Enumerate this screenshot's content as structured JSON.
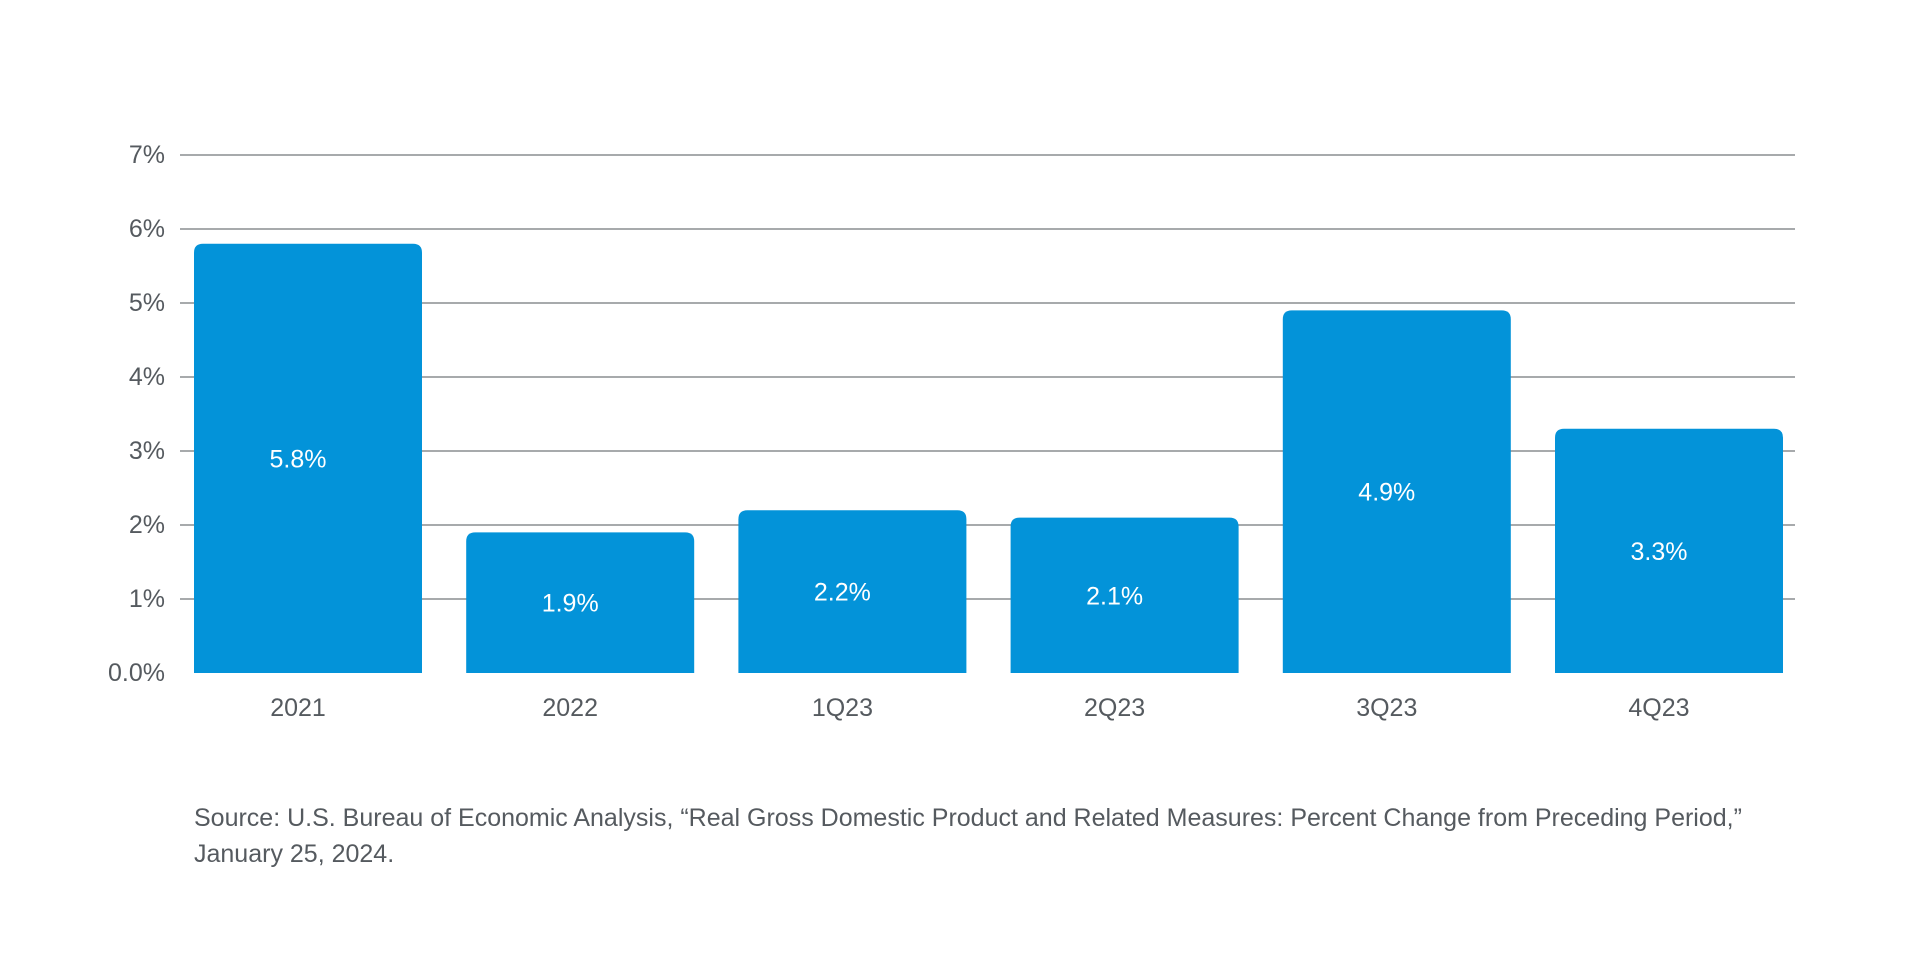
{
  "chart_data": {
    "type": "bar",
    "categories": [
      "2021",
      "2022",
      "1Q23",
      "2Q23",
      "3Q23",
      "4Q23"
    ],
    "values": [
      5.8,
      1.9,
      2.2,
      2.1,
      4.9,
      3.3
    ],
    "data_labels": [
      "5.8%",
      "1.9%",
      "2.2%",
      "2.1%",
      "4.9%",
      "3.3%"
    ],
    "title": "",
    "xlabel": "",
    "ylabel": "",
    "ylim": [
      0,
      7
    ],
    "yticks": [
      0,
      1,
      2,
      3,
      4,
      5,
      6,
      7
    ],
    "ytick_labels": [
      "0.0%",
      "1%",
      "2%",
      "3%",
      "4%",
      "5%",
      "6%",
      "7%"
    ],
    "grid": true,
    "legend": "none",
    "bar_color": "#0393d9",
    "grid_color": "#8a8d91",
    "text_color": "#555a5f"
  },
  "source_note": "Source: U.S. Bureau of Economic Analysis, “Real Gross Domestic Product and Related Measures: Percent Change from Preceding Period,” January 25, 2024."
}
